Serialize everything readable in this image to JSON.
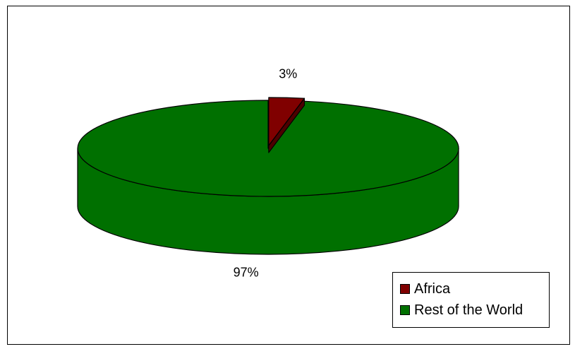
{
  "chart_data": {
    "type": "pie",
    "title": "",
    "three_d": true,
    "exploded_slice": "Africa",
    "slices": [
      {
        "label": "Africa",
        "value": 3,
        "value_label": "3%",
        "color": "#800000",
        "side_color": "#4d0000"
      },
      {
        "label": "Rest of the World",
        "value": 97,
        "value_label": "97%",
        "color": "#007000",
        "side_color": "#006400"
      }
    ],
    "legend": {
      "position": "bottom-right",
      "entries": [
        "Africa",
        "Rest of the World"
      ]
    }
  }
}
